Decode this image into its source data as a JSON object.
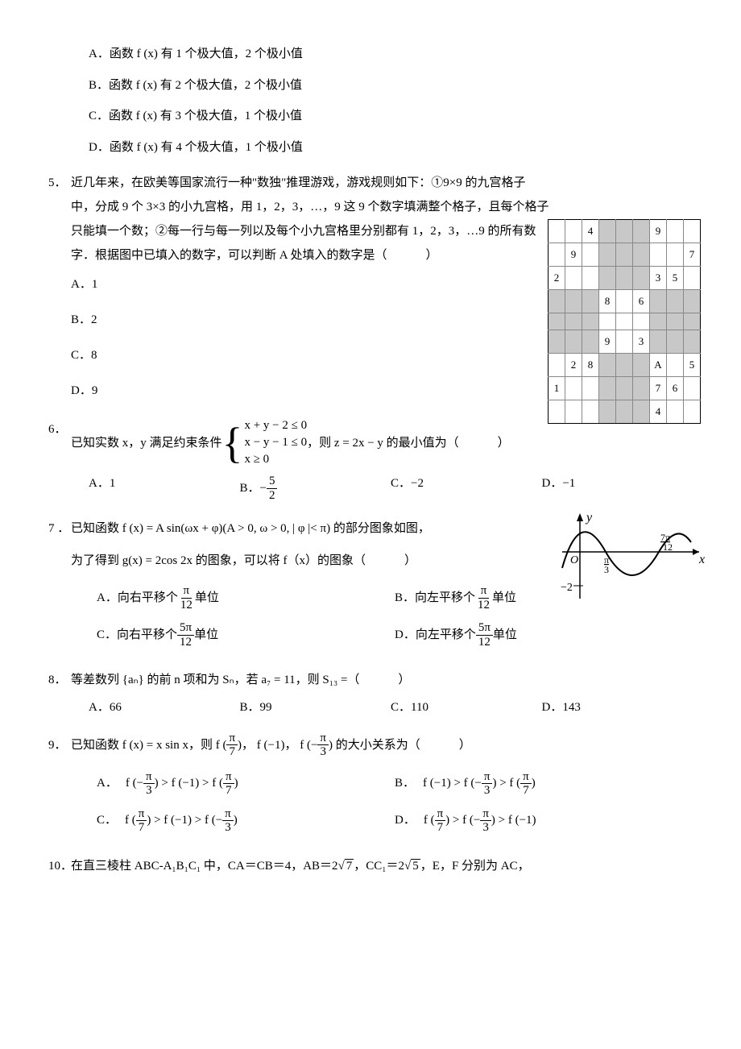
{
  "q4_options": {
    "A": "A．函数 f (x) 有 1 个极大值，2 个极小值",
    "B": "B．函数 f (x) 有 2 个极大值，2 个极小值",
    "C": "C．函数 f (x) 有 3 个极大值，1 个极小值",
    "D": "D．函数 f (x) 有 4 个极大值，1 个极小值"
  },
  "q5": {
    "num": "5．",
    "stem_l1": "近几年来，在欧美等国家流行一种\"数独\"推理游戏，游戏规则如下：①9×9 的九宫格子",
    "stem_l2": "中，分成 9 个 3×3 的小九宫格，用 1，2，3，…，9 这 9 个数字填满整个格子，且每个格子",
    "stem_l3": "只能填一个数；②每一行与每一列以及每个小九宫格里分别都有 1，2，3，…9 的所有数",
    "stem_l4_pre": "字．根据图中已填入的数字，可以判断 A 处填入的数字是（",
    "stem_l4_post": "）",
    "opts": {
      "A": "A．1",
      "B": "B．2",
      "C": "C．8",
      "D": "D．9"
    },
    "sudoku": {
      "gray_cells": [
        "0,3",
        "0,4",
        "0,5",
        "1,3",
        "1,4",
        "1,5",
        "2,3",
        "2,4",
        "2,5",
        "3,0",
        "3,1",
        "3,2",
        "4,0",
        "4,1",
        "4,2",
        "5,0",
        "5,1",
        "5,2",
        "3,6",
        "3,7",
        "3,8",
        "4,6",
        "4,7",
        "4,8",
        "5,6",
        "5,7",
        "5,8",
        "6,3",
        "6,4",
        "6,5",
        "7,3",
        "7,4",
        "7,5",
        "8,3",
        "8,4",
        "8,5"
      ],
      "fills": {
        "0,2": "4",
        "0,6": "9",
        "1,1": "9",
        "1,8": "7",
        "2,0": "2",
        "2,6": "3",
        "2,7": "5",
        "3,3": "8",
        "3,5": "6",
        "5,3": "9",
        "5,5": "3",
        "6,1": "2",
        "6,2": "8",
        "6,6": "A",
        "6,8": "5",
        "7,0": "1",
        "7,6": "7",
        "7,7": "6",
        "8,6": "4"
      }
    }
  },
  "q6": {
    "num": "6．",
    "pre": "已知实数 x，y 满足约束条件",
    "lines": [
      "x + y − 2 ≤ 0",
      "x − y − 1 ≤ 0",
      "x ≥ 0"
    ],
    "post_pre": "，则 z = 2x − y 的最小值为（",
    "post_post": "）",
    "opts": {
      "A": "A．1",
      "B_label": "B．",
      "B_neg": "−",
      "B_num": "5",
      "B_den": "2",
      "C": "C．−2",
      "D": "D．−1"
    }
  },
  "q7": {
    "num": "7 ．",
    "stem1": "已知函数 f (x) = A sin(ωx + φ)(A > 0, ω > 0, | φ |< π) 的部分图象如图，",
    "stem2_pre": "为了得到 g(x) = 2cos 2x 的图象，可以将 f（x）的图象（",
    "stem2_post": "）",
    "opts": {
      "A_pre": "A．向右平移个",
      "A_num": "π",
      "A_den": "12",
      "A_post": "单位",
      "B_pre": "B．向左平移个",
      "B_num": "π",
      "B_den": "12",
      "B_post": "单位",
      "C_pre": "C．向右平移个",
      "C_num": "5π",
      "C_den": "12",
      "C_post": "单位",
      "D_pre": "D．向左平移个",
      "D_num": "5π",
      "D_den": "12",
      "D_post": "单位"
    },
    "graph": {
      "labels": {
        "y": "y",
        "x": "x",
        "O": "O",
        "neg2": "−2",
        "pi3_num": "π",
        "pi3_den": "3",
        "7pi12_num": "7π",
        "7pi12_den": "12"
      },
      "colors": {
        "axis": "#000000",
        "curve": "#000000",
        "text": "#000000"
      }
    }
  },
  "q8": {
    "num": "8．",
    "stem_pre": "等差数列 {aₙ} 的前 n 项和为 Sₙ，若 a₇ = 11，则 S₁₃ =（",
    "stem_post": "）",
    "opts": {
      "A": "A．66",
      "B": "B．99",
      "C": "C．110",
      "D": "D．143"
    }
  },
  "q9": {
    "num": "9．",
    "stem_a": "已知函数 f (x) = x sin x，则 f (",
    "pi7_num": "π",
    "pi7_den": "7",
    "stem_b": ")， f (−1)， f (−",
    "pi3_num": "π",
    "pi3_den": "3",
    "stem_c_pre": ") 的大小关系为（",
    "stem_c_post": "）",
    "opts": {
      "A": {
        "label": "A．",
        "t1": "f (−",
        "f1n": "π",
        "f1d": "3",
        "t2": ") > f (−1) > f (",
        "f2n": "π",
        "f2d": "7",
        "t3": ")"
      },
      "B": {
        "label": "B．",
        "t1": "f (−1) > f (−",
        "f1n": "π",
        "f1d": "3",
        "t2": ") > f (",
        "f2n": "π",
        "f2d": "7",
        "t3": ")"
      },
      "C": {
        "label": "C．",
        "t1": "f (",
        "f1n": "π",
        "f1d": "7",
        "t2": ") > f (−1) > f (−",
        "f2n": "π",
        "f2d": "3",
        "t3": ")"
      },
      "D": {
        "label": "D．",
        "t1": "f (",
        "f1n": "π",
        "f1d": "7",
        "t2": ") > f (−",
        "f2n": "π",
        "f2d": "3",
        "t3": ") > f (−1)"
      }
    }
  },
  "q10": {
    "num": "10．",
    "t1": "在直三棱柱 ABC‐A₁B₁C₁ 中，CA＝CB＝4，AB＝2",
    "r1": "7",
    "t2": "，CC₁＝2",
    "r2": "5",
    "t3": "，E，F 分别为 AC，"
  }
}
